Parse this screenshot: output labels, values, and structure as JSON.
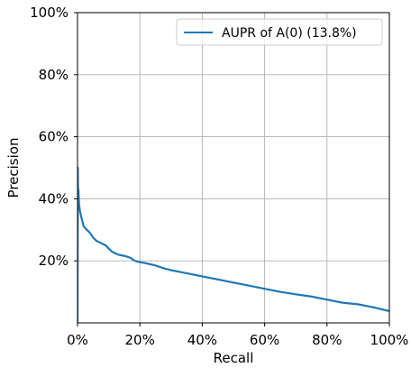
{
  "chart_data": {
    "type": "line",
    "title": "",
    "xlabel": "Recall",
    "ylabel": "Precision",
    "xlim": [
      0,
      100
    ],
    "ylim": [
      0,
      100
    ],
    "x_unit": "%",
    "y_unit": "%",
    "xticks": [
      {
        "value": 0,
        "label": "0%"
      },
      {
        "value": 20,
        "label": "20%"
      },
      {
        "value": 40,
        "label": "40%"
      },
      {
        "value": 60,
        "label": "60%"
      },
      {
        "value": 80,
        "label": "80%"
      },
      {
        "value": 100,
        "label": "100%"
      }
    ],
    "yticks": [
      {
        "value": 20,
        "label": "20%"
      },
      {
        "value": 40,
        "label": "40%"
      },
      {
        "value": 60,
        "label": "60%"
      },
      {
        "value": 80,
        "label": "80%"
      },
      {
        "value": 100,
        "label": "100%"
      }
    ],
    "grid": true,
    "legend_position": "top-right",
    "series": [
      {
        "name": "AUPR of A(0) (13.8%)",
        "color": "#1f77b4",
        "x": [
          0,
          0.1,
          0.2,
          0.3,
          0.5,
          0.8,
          1.0,
          1.5,
          2,
          3,
          4,
          5,
          6,
          7,
          8,
          9,
          10,
          11,
          12,
          13,
          14,
          15,
          16,
          17,
          18,
          19,
          20,
          22,
          25,
          28,
          30,
          35,
          40,
          45,
          50,
          55,
          60,
          65,
          70,
          75,
          80,
          85,
          90,
          95,
          100
        ],
        "y": [
          0,
          50,
          38,
          43,
          38,
          36,
          35,
          33,
          31,
          30,
          29,
          27.5,
          26.5,
          26,
          25.5,
          25,
          24,
          23,
          22.5,
          22,
          21.8,
          21.6,
          21.3,
          21,
          20.2,
          19.8,
          19.6,
          19.2,
          18.5,
          17.5,
          17,
          16,
          15,
          14,
          13,
          12,
          11,
          10,
          9.2,
          8.5,
          7.5,
          6.5,
          6,
          5,
          3.8
        ]
      }
    ]
  }
}
